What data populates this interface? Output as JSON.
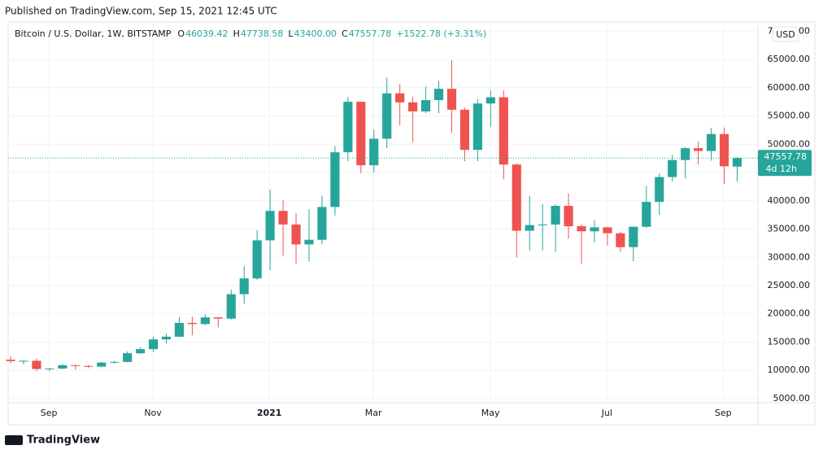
{
  "header": {
    "published": "Published on TradingView.com, Sep 15, 2021 12:45 UTC",
    "footer_brand": "TradingView"
  },
  "chart_data": {
    "type": "candlestick",
    "symbol": "Bitcoin / U.S. Dollar, 1W, BITSTAMP",
    "ohlc_legend": [
      {
        "key": "O",
        "value": "46039.42"
      },
      {
        "key": "H",
        "value": "47738.58"
      },
      {
        "key": "L",
        "value": "43400.00"
      },
      {
        "key": "C",
        "value": "47557.78"
      }
    ],
    "change": "+1522.78 (+3.31%)",
    "currency": "USD",
    "last_price_label": "47557.78",
    "countdown": "4d 12h",
    "up_color": "#26a69a",
    "down_color": "#ef5350",
    "grid": true,
    "open": [
      11900,
      11650,
      11700,
      10250,
      10330,
      10920,
      10780,
      10670,
      11380,
      11500,
      13030,
      13760,
      15480,
      15960,
      18400,
      18200,
      19370,
      19150,
      23480,
      26270,
      33000,
      38200,
      35800,
      32280,
      33100,
      38900,
      48580,
      57500,
      46280,
      50970,
      59000,
      57400,
      55800,
      57800,
      59800,
      56100,
      49000,
      57200,
      58300,
      46400,
      34700,
      35700,
      35800,
      39100,
      35500,
      34600,
      35300,
      34250,
      31800,
      35400,
      39800,
      44200,
      47200,
      49300,
      48800,
      51800,
      46039.42
    ],
    "high": [
      12480,
      11800,
      12100,
      10500,
      11100,
      10990,
      10950,
      11500,
      11700,
      13350,
      14100,
      15970,
      16480,
      19400,
      19490,
      19920,
      19420,
      24300,
      28400,
      34800,
      41950,
      40100,
      37850,
      38500,
      40900,
      49700,
      58350,
      57500,
      52600,
      61800,
      60600,
      58400,
      60200,
      61200,
      64850,
      56500,
      58000,
      59500,
      59500,
      46600,
      40900,
      39400,
      39400,
      41300,
      35800,
      36600,
      35400,
      34500,
      35400,
      42600,
      44800,
      48100,
      49500,
      50500,
      52900,
      52950,
      47738.58
    ],
    "low": [
      11300,
      11100,
      9900,
      9850,
      10200,
      10130,
      10370,
      10530,
      11200,
      11400,
      12900,
      13200,
      14800,
      15900,
      16200,
      18000,
      17600,
      19000,
      21800,
      26000,
      27700,
      30300,
      28900,
      29240,
      32300,
      37400,
      47000,
      44900,
      45000,
      49300,
      53300,
      50400,
      55500,
      55500,
      52000,
      47000,
      47000,
      53000,
      43800,
      30000,
      31200,
      31200,
      31000,
      33300,
      28800,
      32700,
      32100,
      31000,
      29300,
      35200,
      37500,
      43400,
      43900,
      46400,
      47100,
      43000,
      43400
    ],
    "close": [
      11650,
      11700,
      10250,
      10330,
      10920,
      10780,
      10670,
      11380,
      11500,
      13030,
      13760,
      15480,
      15960,
      18400,
      18200,
      19370,
      19150,
      23480,
      26270,
      33000,
      38200,
      35800,
      32280,
      33100,
      38900,
      48580,
      57500,
      46280,
      50970,
      59000,
      57400,
      55800,
      57800,
      59800,
      56100,
      49000,
      57200,
      58300,
      46400,
      34700,
      35700,
      35800,
      39100,
      35500,
      34600,
      35300,
      34250,
      31800,
      35400,
      39800,
      44200,
      47200,
      49300,
      48800,
      51800,
      46100,
      47557.78
    ],
    "xlim": [
      -0.19,
      57.6
    ],
    "xticks": [
      {
        "value": 2.95,
        "label": "Sep"
      },
      {
        "value": 10.97,
        "label": "Nov"
      },
      {
        "value": 19.94,
        "label": "2021"
      },
      {
        "value": 27.96,
        "label": "Mar"
      },
      {
        "value": 36.99,
        "label": "May"
      },
      {
        "value": 45.96,
        "label": "Jul"
      },
      {
        "value": 54.92,
        "label": "Sep"
      }
    ],
    "ylim": [
      4280,
      71620
    ],
    "yticks": [
      {
        "value": 5000,
        "label": "5000.00"
      },
      {
        "value": 10000,
        "label": "10000.00"
      },
      {
        "value": 15000,
        "label": "15000.00"
      },
      {
        "value": 20000,
        "label": "20000.00"
      },
      {
        "value": 25000,
        "label": "25000.00"
      },
      {
        "value": 30000,
        "label": "30000.00"
      },
      {
        "value": 35000,
        "label": "35000.00"
      },
      {
        "value": 40000,
        "label": "40000.00"
      },
      {
        "value": 45000,
        "label": "45000.00"
      },
      {
        "value": 50000,
        "label": "50000.00"
      },
      {
        "value": 55000,
        "label": "55000.00"
      },
      {
        "value": 60000,
        "label": "60000.00"
      },
      {
        "value": 65000,
        "label": "65000.00"
      },
      {
        "value": 70000,
        "label": "70000.00"
      }
    ]
  }
}
